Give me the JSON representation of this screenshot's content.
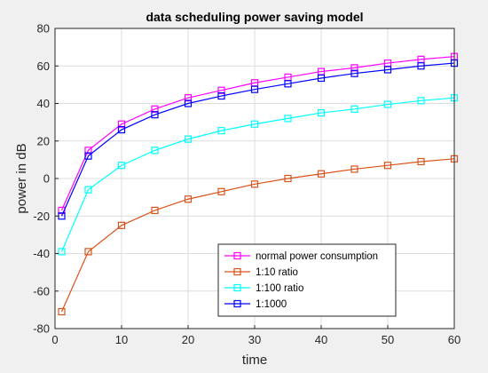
{
  "chart_data": {
    "type": "line",
    "title": "data scheduling power saving model",
    "xlabel": "time",
    "ylabel": "power in dB",
    "xlim": [
      0,
      60
    ],
    "ylim": [
      -80,
      80
    ],
    "xticks": [
      "0",
      "10",
      "20",
      "30",
      "40",
      "50",
      "60"
    ],
    "yticks": [
      "-80",
      "-60",
      "-40",
      "-20",
      "0",
      "20",
      "40",
      "60",
      "80"
    ],
    "grid": true,
    "legend_position": "bottom-right",
    "x": [
      1,
      5,
      10,
      15,
      20,
      25,
      30,
      35,
      40,
      45,
      50,
      55,
      60
    ],
    "series": [
      {
        "name": "normal power consumption",
        "color": "#ff00ff",
        "marker": "square",
        "values": [
          -17,
          15,
          29,
          37,
          43,
          47,
          51,
          54,
          57,
          59,
          61.5,
          63.5,
          65
        ]
      },
      {
        "name": "1:10 ratio",
        "color": "#d95319",
        "marker": "square",
        "values": [
          -71,
          -39,
          -25,
          -17,
          -11,
          -7,
          -3,
          0,
          2.5,
          5,
          7,
          9,
          10.5
        ]
      },
      {
        "name": "1:100 ratio",
        "color": "#00ffff",
        "marker": "square",
        "values": [
          -39,
          -6,
          7,
          15,
          21,
          25.5,
          29,
          32,
          35,
          37,
          39.5,
          41.5,
          43
        ]
      },
      {
        "name": "1:1000",
        "color": "#0000ff",
        "marker": "square",
        "values": [
          -20,
          12,
          26,
          34,
          40,
          44,
          47.5,
          50.5,
          53.5,
          56,
          58,
          60,
          61.5
        ]
      }
    ]
  }
}
